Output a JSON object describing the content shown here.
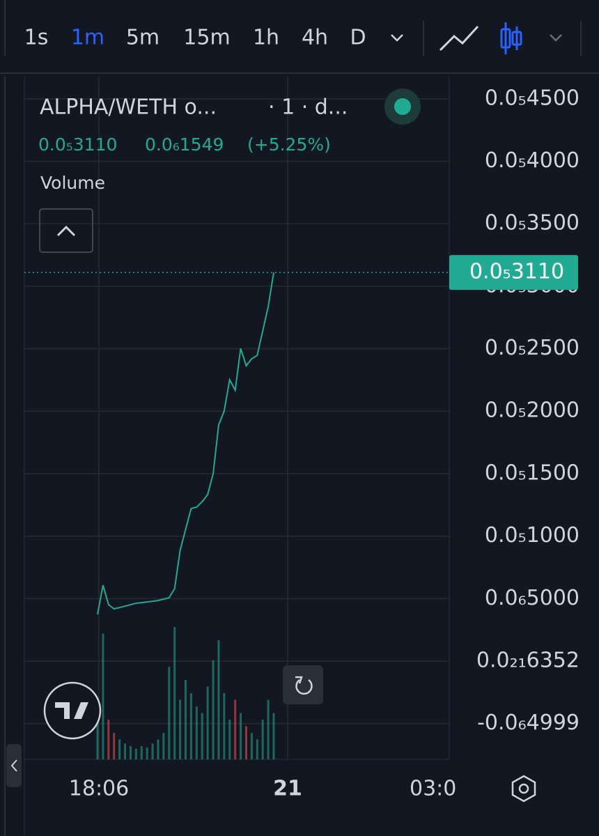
{
  "toolbar": {
    "intervals": [
      "1s",
      "1m",
      "5m",
      "15m",
      "1h",
      "4h",
      "D"
    ],
    "active_index": 1
  },
  "legend": {
    "symbol": "ALPHA/WETH o...",
    "interval": "· 1 · d...",
    "price": "0.0₅3110",
    "change": "0.0₆1549",
    "change_percent": "(+5.25%)",
    "indicator": "Volume"
  },
  "chart_data": {
    "type": "line",
    "color": "#22ab94",
    "values": [
      3.73e-07,
      6.08e-07,
      4.52e-07,
      4.18e-07,
      4.29e-07,
      4.4e-07,
      4.52e-07,
      4.63e-07,
      4.68e-07,
      4.74e-07,
      4.79e-07,
      4.85e-07,
      4.96e-07,
      5.07e-07,
      5.8e-07,
      8.86e-07,
      1.054e-06,
      1.221e-06,
      1.232e-06,
      1.276e-06,
      1.332e-06,
      1.499e-06,
      1.89e-06,
      2.001e-06,
      2.252e-06,
      2.168e-06,
      2.503e-06,
      2.363e-06,
      2.419e-06,
      2.447e-06,
      2.642e-06,
      2.837e-06,
      3.11e-06
    ],
    "volume": [
      40,
      95,
      30,
      20,
      15,
      12,
      10,
      8,
      10,
      9,
      12,
      15,
      20,
      70,
      100,
      45,
      60,
      50,
      40,
      35,
      55,
      75,
      90,
      50,
      30,
      45,
      35,
      25,
      20,
      15,
      30,
      45,
      35
    ],
    "ylim": [
      -7.86e-07,
      4.677e-06
    ],
    "yticks": [
      {
        "value": 4.5e-06,
        "label": "0.0₅4500"
      },
      {
        "value": 4e-06,
        "label": "0.0₅4000"
      },
      {
        "value": 3.5e-06,
        "label": "0.0₅3500"
      },
      {
        "value": 3e-06,
        "label": "0.0₅3000"
      },
      {
        "value": 2.5e-06,
        "label": "0.0₅2500"
      },
      {
        "value": 2e-06,
        "label": "0.0₅2000"
      },
      {
        "value": 1.5e-06,
        "label": "0.0₅1500"
      },
      {
        "value": 1e-06,
        "label": "0.0₅1000"
      },
      {
        "value": 5e-07,
        "label": "0.0₆5000"
      },
      {
        "value": 6.352e-22,
        "label": "0.0₂₁6352"
      },
      {
        "value": -4.999e-07,
        "label": "-0.0₆4999"
      }
    ],
    "last_price": {
      "value": 3.11e-06,
      "label": "0.0₅3110"
    },
    "x_labels": [
      "18:06",
      "21",
      "03:0"
    ]
  }
}
